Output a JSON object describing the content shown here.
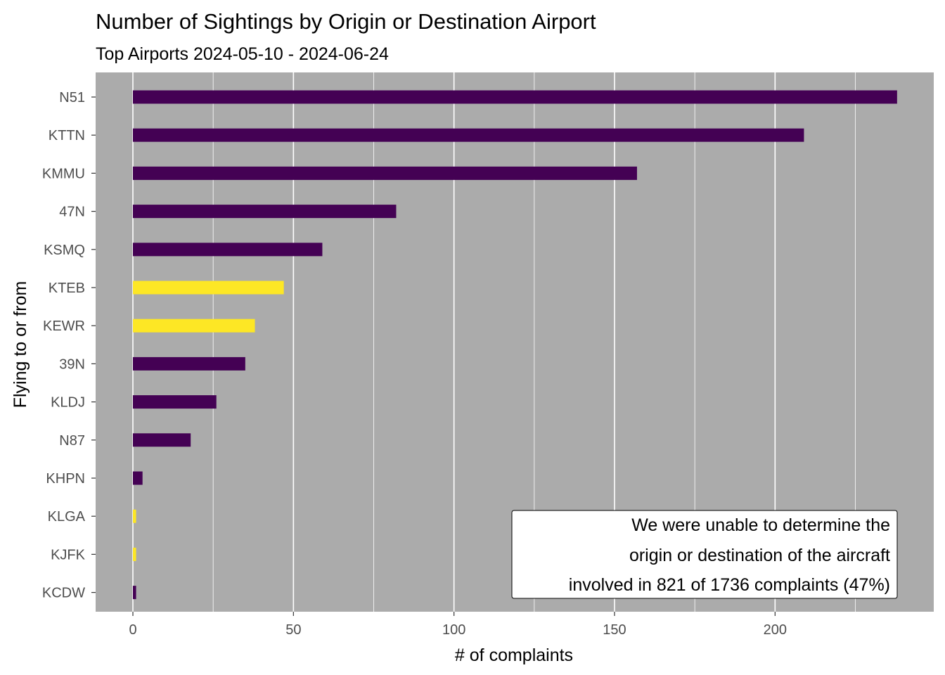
{
  "chart_data": {
    "type": "bar",
    "orientation": "horizontal",
    "title": "Number of Sightings by Origin or Destination Airport",
    "subtitle": "Top Airports 2024-05-10 - 2024-06-24",
    "xlabel": "# of complaints",
    "ylabel": "Flying to or from",
    "xlim": [
      0,
      240
    ],
    "x_ticks": [
      0,
      50,
      100,
      150,
      200
    ],
    "grid": "vertical major and minor lines",
    "categories": [
      "N51",
      "KTTN",
      "KMMU",
      "47N",
      "KSMQ",
      "KTEB",
      "KEWR",
      "39N",
      "KLDJ",
      "N87",
      "KHPN",
      "KLGA",
      "KJFK",
      "KCDW"
    ],
    "values": [
      238,
      209,
      157,
      82,
      59,
      47,
      38,
      35,
      26,
      18,
      3,
      1,
      1,
      1
    ],
    "bar_color_groups": [
      "dark",
      "dark",
      "dark",
      "dark",
      "dark",
      "light",
      "light",
      "dark",
      "dark",
      "dark",
      "dark",
      "light",
      "light",
      "dark"
    ],
    "colors": {
      "dark": "#440154",
      "light": "#FDE725",
      "panel": "#ABABAB",
      "grid": "#FFFFFF"
    },
    "annotation": {
      "lines": [
        "We were unable to determine the",
        "origin or destination of the aircraft",
        "involved in 821 of 1736 complaints (47%)"
      ],
      "placement": "bottom-right"
    }
  }
}
